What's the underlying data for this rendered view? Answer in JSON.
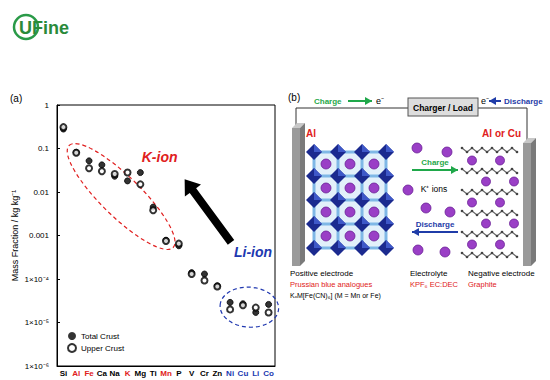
{
  "logo": "UFine",
  "chart_data": {
    "type": "scatter",
    "panel_label": "(a)",
    "ylabel": "Mass Fraction / kg kg⁻¹",
    "categories": [
      "Si",
      "Al",
      "Fe",
      "Ca",
      "Na",
      "K",
      "Mg",
      "Ti",
      "Mn",
      "P",
      "V",
      "Cr",
      "Zn",
      "Ni",
      "Cu",
      "Li",
      "Co"
    ],
    "series": [
      {
        "name": "Total Crust",
        "color": "#000000",
        "marker": "circle",
        "values": [
          0.28,
          0.082,
          0.052,
          0.042,
          0.023,
          0.018,
          0.028,
          0.0045,
          0.00078,
          0.00058,
          0.00014,
          0.00013,
          7e-05,
          2.9e-05,
          2.7e-05,
          1.7e-05,
          2.6e-05
        ]
      },
      {
        "name": "Upper Crust",
        "color": "#000000",
        "marker": "emptyCircle",
        "values": [
          0.31,
          0.08,
          0.035,
          0.03,
          0.026,
          0.028,
          0.015,
          0.0038,
          0.00075,
          0.00065,
          0.00013,
          9.2e-05,
          6.7e-05,
          2e-05,
          2.5e-05,
          2.2e-05,
          1.7e-05
        ]
      }
    ],
    "ylim": [
      1e-06,
      1
    ],
    "yticks": [
      1,
      0.1,
      0.01,
      0.001,
      {
        "value": 0.0001,
        "label": "1×10⁻⁴"
      },
      {
        "value": 1e-05,
        "label": "1×10⁻⁵"
      },
      {
        "value": 1e-06,
        "label": "1×10⁻⁶"
      }
    ],
    "log": "y",
    "grid": false,
    "legend": "lower left",
    "annotations": [
      {
        "text": "K-ion",
        "color": "#e02020",
        "categories": [
          "Al",
          "Fe",
          "K",
          "Mn"
        ]
      },
      {
        "text": "Li-ion",
        "color": "#2038b0",
        "categories": [
          "Ni",
          "Cu",
          "Li",
          "Co"
        ]
      }
    ]
  },
  "diagram": {
    "panel_label": "(b)",
    "circuit": {
      "charge": "Charge",
      "electron": "e⁻",
      "box": "Charger / Load",
      "discharge": "Discharge"
    },
    "left_collector": "Al",
    "right_collector": "Al or Cu",
    "ion_flow": {
      "charge": "Charge",
      "ions": "K⁺ ions",
      "discharge": "Discharge"
    },
    "columns": [
      {
        "title": "Positive electrode",
        "material": "Prussian blue analogues",
        "formula": "KₓM[Fe(CN)₆] (M = Mn or Fe)"
      },
      {
        "title": "Electrolyte",
        "material": "KPF₆ EC:DEC"
      },
      {
        "title": "Negative electrode",
        "material": "Graphite"
      }
    ]
  }
}
